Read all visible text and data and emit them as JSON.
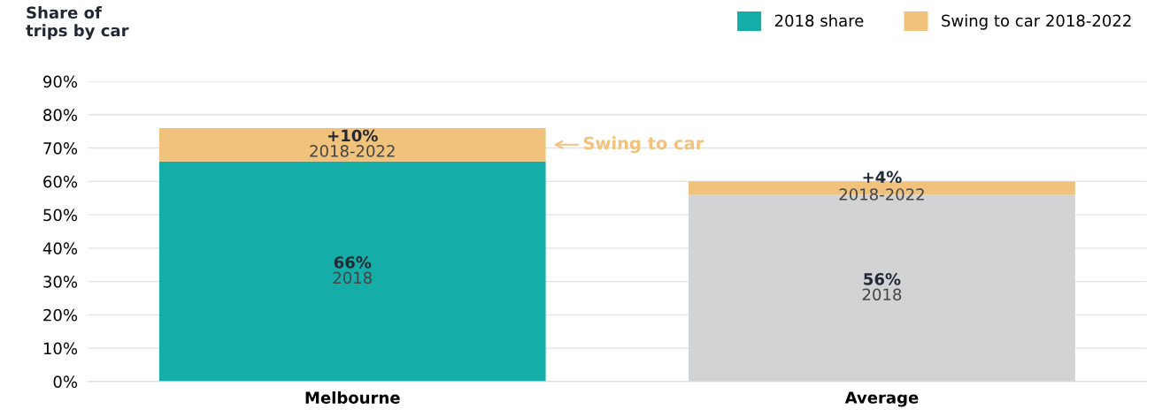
{
  "chart_data": {
    "type": "bar",
    "stacked": true,
    "ylabel": "Share of\ntrips by car",
    "categories": [
      "Melbourne",
      "Average"
    ],
    "series": [
      {
        "name": "2018 share",
        "color": "#14ada8",
        "colors": [
          "#14ada8",
          "#d1d3d5"
        ],
        "values": [
          66,
          56
        ],
        "value_labels": [
          "66%\n2018",
          "56%\n2018"
        ]
      },
      {
        "name": "Swing to car 2018-2022",
        "color": "#f0c27b",
        "values": [
          10,
          4
        ],
        "value_labels": [
          "+10%\n2018-2022",
          "+4%\n2018-2022"
        ]
      }
    ],
    "ylim": [
      0,
      90
    ],
    "yticks": [
      {
        "value": 0,
        "label": "0%"
      },
      {
        "value": 10,
        "label": "10%"
      },
      {
        "value": 20,
        "label": "20%"
      },
      {
        "value": 30,
        "label": "30%"
      },
      {
        "value": 40,
        "label": "40%"
      },
      {
        "value": 50,
        "label": "50%"
      },
      {
        "value": 60,
        "label": "60%"
      },
      {
        "value": 70,
        "label": "70%"
      },
      {
        "value": 80,
        "label": "80%"
      },
      {
        "value": 90,
        "label": "90%"
      }
    ],
    "grid": "y",
    "legend": "top right",
    "annotations": [
      "Swing to car"
    ]
  }
}
